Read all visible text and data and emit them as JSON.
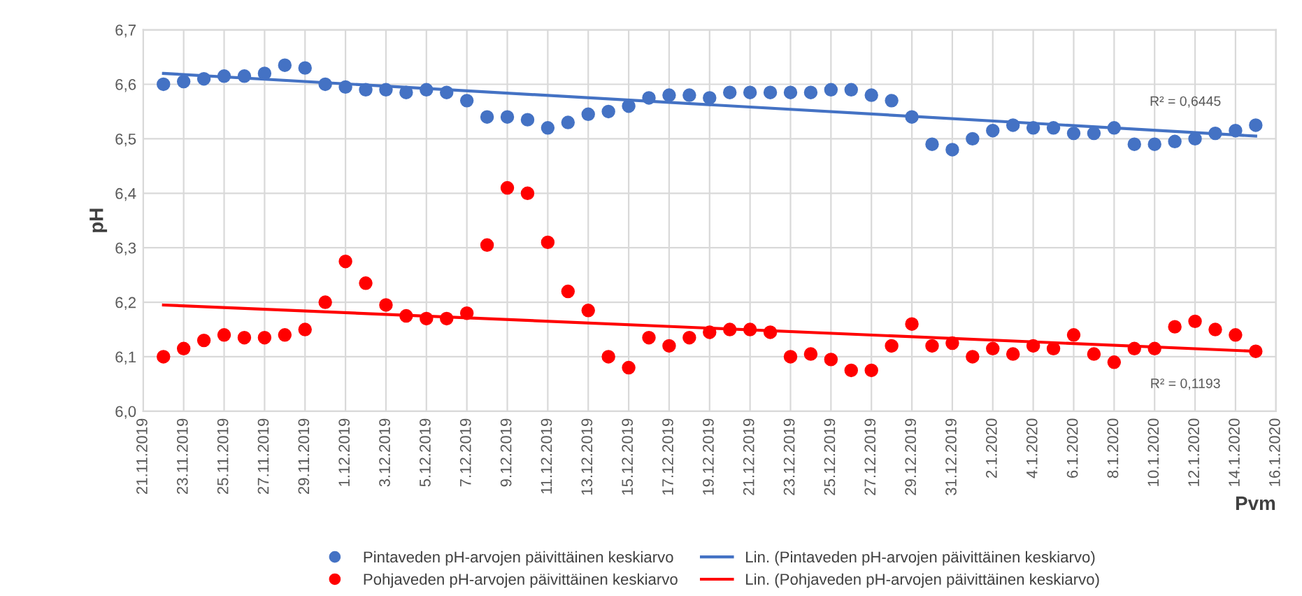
{
  "chart_data": {
    "type": "scatter",
    "ylabel": "pH",
    "xlabel": "Pvm",
    "x": [
      "2019-11-22",
      "2019-11-23",
      "2019-11-24",
      "2019-11-25",
      "2019-11-26",
      "2019-11-27",
      "2019-11-28",
      "2019-11-29",
      "2019-11-30",
      "2019-12-01",
      "2019-12-02",
      "2019-12-03",
      "2019-12-04",
      "2019-12-05",
      "2019-12-06",
      "2019-12-07",
      "2019-12-08",
      "2019-12-09",
      "2019-12-10",
      "2019-12-11",
      "2019-12-12",
      "2019-12-13",
      "2019-12-14",
      "2019-12-15",
      "2019-12-16",
      "2019-12-17",
      "2019-12-18",
      "2019-12-19",
      "2019-12-20",
      "2019-12-21",
      "2019-12-22",
      "2019-12-23",
      "2019-12-24",
      "2019-12-25",
      "2019-12-26",
      "2019-12-27",
      "2019-12-28",
      "2019-12-29",
      "2019-12-30",
      "2019-12-31",
      "2020-01-01",
      "2020-01-02",
      "2020-01-03",
      "2020-01-04",
      "2020-01-05",
      "2020-01-06",
      "2020-01-07",
      "2020-01-08",
      "2020-01-09",
      "2020-01-10",
      "2020-01-11",
      "2020-01-12",
      "2020-01-13",
      "2020-01-14",
      "2020-01-15"
    ],
    "series": [
      {
        "name": "Pintaveden pH-arvojen päivittäinen keskiarvo",
        "color": "#4472c4",
        "marker": "circle",
        "values": [
          6.6,
          6.605,
          6.61,
          6.615,
          6.615,
          6.62,
          6.635,
          6.63,
          6.6,
          6.595,
          6.59,
          6.59,
          6.585,
          6.59,
          6.585,
          6.57,
          6.54,
          6.54,
          6.535,
          6.52,
          6.53,
          6.545,
          6.55,
          6.56,
          6.575,
          6.58,
          6.58,
          6.575,
          6.585,
          6.585,
          6.585,
          6.585,
          6.585,
          6.59,
          6.59,
          6.58,
          6.57,
          6.54,
          6.49,
          6.48,
          6.5,
          6.515,
          6.525,
          6.52,
          6.52,
          6.51,
          6.51,
          6.52,
          6.49,
          6.49,
          6.495,
          6.5,
          6.51,
          6.515,
          6.525
        ]
      },
      {
        "name": "Pohjaveden pH-arvojen päivittäinen keskiarvo",
        "color": "#ff0000",
        "marker": "circle",
        "values": [
          6.1,
          6.115,
          6.13,
          6.14,
          6.135,
          6.135,
          6.14,
          6.15,
          6.2,
          6.275,
          6.235,
          6.195,
          6.175,
          6.17,
          6.17,
          6.18,
          6.305,
          6.41,
          6.4,
          6.31,
          6.22,
          6.185,
          6.1,
          6.08,
          6.135,
          6.12,
          6.135,
          6.145,
          6.15,
          6.15,
          6.145,
          6.1,
          6.105,
          6.095,
          6.075,
          6.075,
          6.12,
          6.16,
          6.12,
          6.125,
          6.1,
          6.115,
          6.105,
          6.12,
          6.115,
          6.14,
          6.105,
          6.09,
          6.115,
          6.115,
          6.155,
          6.165,
          6.15,
          6.14,
          6.11
        ]
      },
      {
        "name": "Lin. (Pintaveden pH-arvojen päivittäinen keskiarvo)",
        "type": "line",
        "color": "#4472c4",
        "marker": "none",
        "line_style": "solid",
        "x": [
          "2019-11-22",
          "2020-01-15"
        ],
        "values": [
          6.62,
          6.505
        ]
      },
      {
        "name": "Lin. (Pohjaveden pH-arvojen päivittäinen keskiarvo)",
        "type": "line",
        "color": "#ff0000",
        "marker": "none",
        "line_style": "solid",
        "x": [
          "2019-11-22",
          "2020-01-15"
        ],
        "values": [
          6.195,
          6.11
        ]
      }
    ],
    "annotations": [
      "R² = 0,6445",
      "R² = 0,1193"
    ],
    "xlim": [
      "2019-11-21",
      "2020-01-16"
    ],
    "xticks": [
      {
        "value": "2019-11-21",
        "label": "21.11.2019"
      },
      {
        "value": "2019-11-23",
        "label": "23.11.2019"
      },
      {
        "value": "2019-11-25",
        "label": "25.11.2019"
      },
      {
        "value": "2019-11-27",
        "label": "27.11.2019"
      },
      {
        "value": "2019-11-29",
        "label": "29.11.2019"
      },
      {
        "value": "2019-12-01",
        "label": "1.12.2019"
      },
      {
        "value": "2019-12-03",
        "label": "3.12.2019"
      },
      {
        "value": "2019-12-05",
        "label": "5.12.2019"
      },
      {
        "value": "2019-12-07",
        "label": "7.12.2019"
      },
      {
        "value": "2019-12-09",
        "label": "9.12.2019"
      },
      {
        "value": "2019-12-11",
        "label": "11.12.2019"
      },
      {
        "value": "2019-12-13",
        "label": "13.12.2019"
      },
      {
        "value": "2019-12-15",
        "label": "15.12.2019"
      },
      {
        "value": "2019-12-17",
        "label": "17.12.2019"
      },
      {
        "value": "2019-12-19",
        "label": "19.12.2019"
      },
      {
        "value": "2019-12-21",
        "label": "21.12.2019"
      },
      {
        "value": "2019-12-23",
        "label": "23.12.2019"
      },
      {
        "value": "2019-12-25",
        "label": "25.12.2019"
      },
      {
        "value": "2019-12-27",
        "label": "27.12.2019"
      },
      {
        "value": "2019-12-29",
        "label": "29.12.2019"
      },
      {
        "value": "2019-12-31",
        "label": "31.12.2019"
      },
      {
        "value": "2020-01-02",
        "label": "2.1.2020"
      },
      {
        "value": "2020-01-04",
        "label": "4.1.2020"
      },
      {
        "value": "2020-01-06",
        "label": "6.1.2020"
      },
      {
        "value": "2020-01-08",
        "label": "8.1.2020"
      },
      {
        "value": "2020-01-10",
        "label": "10.1.2020"
      },
      {
        "value": "2020-01-12",
        "label": "12.1.2020"
      },
      {
        "value": "2020-01-14",
        "label": "14.1.2020"
      },
      {
        "value": "2020-01-16",
        "label": "16.1.2020"
      }
    ],
    "ylim": [
      6.0,
      6.7
    ],
    "yticks": [
      {
        "value": 6.0,
        "label": "6,0"
      },
      {
        "value": 6.1,
        "label": "6,1"
      },
      {
        "value": 6.2,
        "label": "6,2"
      },
      {
        "value": 6.3,
        "label": "6,3"
      },
      {
        "value": 6.4,
        "label": "6,4"
      },
      {
        "value": 6.5,
        "label": "6,5"
      },
      {
        "value": 6.6,
        "label": "6,6"
      },
      {
        "value": 6.7,
        "label": "6,7"
      }
    ],
    "grid": true,
    "legend": "bottom"
  }
}
